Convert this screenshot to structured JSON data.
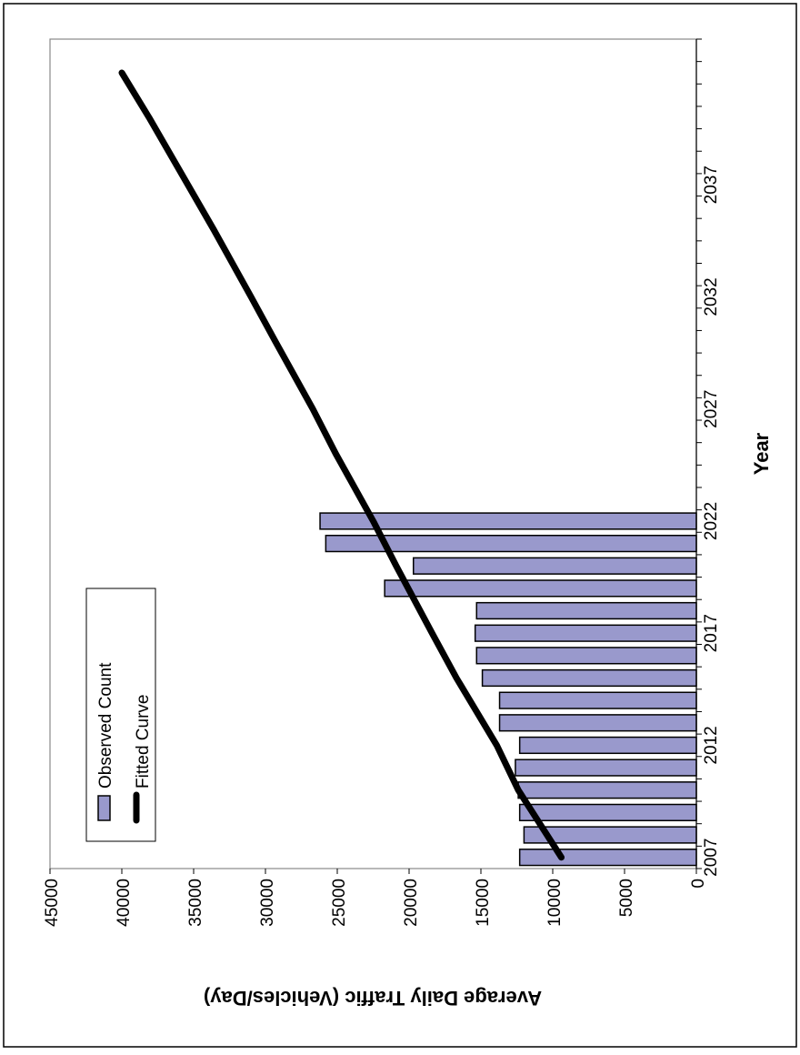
{
  "chart_data": {
    "type": "bar",
    "orientation": "rotated-90-clockwise",
    "xlabel": "Year",
    "ylabel": "Average Daily Traffic (Vehicles/Day)",
    "ylim": [
      0,
      45000
    ],
    "y_ticks": [
      0,
      5000,
      10000,
      15000,
      20000,
      25000,
      30000,
      35000,
      40000,
      45000
    ],
    "y_tick_labels": [
      "0",
      "5000",
      "10000",
      "15000",
      "20000",
      "25000",
      "30000",
      "35000",
      "40000",
      "45000"
    ],
    "xlim": [
      2006.5,
      2043.5
    ],
    "x_tick_labels": [
      "2007",
      "2012",
      "2017",
      "2022",
      "2027",
      "2032",
      "2037"
    ],
    "x_tick_years": [
      2007,
      2012,
      2017,
      2022,
      2027,
      2032,
      2037
    ],
    "x_minor_ticks": [
      2007,
      2008,
      2009,
      2010,
      2011,
      2012,
      2013,
      2014,
      2015,
      2016,
      2017,
      2018,
      2019,
      2020,
      2021,
      2022,
      2023,
      2024,
      2025,
      2026,
      2027,
      2028,
      2029,
      2030,
      2031,
      2032,
      2033,
      2034,
      2035,
      2036,
      2037,
      2038,
      2039,
      2040,
      2041,
      2042,
      2043,
      2044
    ],
    "grid": false,
    "legend_position": "upper-left of rotated plot",
    "series": [
      {
        "name": "Observed Count",
        "kind": "bar",
        "color": "#9999cc",
        "x": [
          2007,
          2008,
          2009,
          2010,
          2011,
          2012,
          2013,
          2014,
          2015,
          2016,
          2017,
          2018,
          2019,
          2020,
          2021,
          2022
        ],
        "values": [
          12300,
          12000,
          12300,
          12400,
          12600,
          12300,
          13700,
          13700,
          14900,
          15300,
          15400,
          15300,
          21700,
          19700,
          25800,
          26200
        ]
      },
      {
        "name": "Fitted Curve",
        "kind": "line",
        "color": "#000000",
        "x": [
          2007,
          2010,
          2012,
          2015,
          2017,
          2020,
          2022,
          2025,
          2027,
          2030,
          2032,
          2035,
          2037,
          2040,
          2042
        ],
        "values": [
          9400,
          12400,
          13900,
          16700,
          18400,
          20900,
          22500,
          25100,
          26700,
          29300,
          31000,
          33600,
          35400,
          38100,
          40000
        ]
      }
    ]
  }
}
